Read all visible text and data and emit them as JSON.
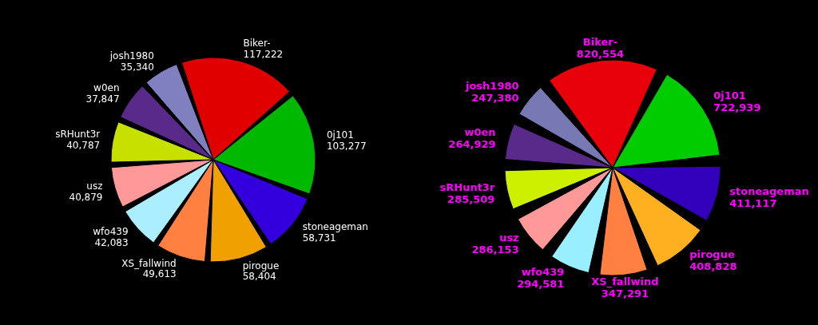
{
  "chart_data": [
    {
      "type": "pie",
      "categories": [
        "Biker-",
        "0j101",
        "stoneageman",
        "pirogue",
        "XS_fallwind",
        "wfo439",
        "usz",
        "sRHunt3r",
        "w0en",
        "josh1980"
      ],
      "values": [
        117222,
        103277,
        58731,
        58404,
        49613,
        42083,
        40879,
        40787,
        37847,
        35340
      ],
      "value_labels": [
        "117,222",
        "103,277",
        "58,731",
        "58,404",
        "49,613",
        "42,083",
        "40,879",
        "40,787",
        "37,847",
        "35,340"
      ],
      "colors": [
        "#e00000",
        "#00b800",
        "#3300dd",
        "#f0a000",
        "#ff8040",
        "#aaeeff",
        "#ff9999",
        "#c8e000",
        "#5a2a8a",
        "#8080c0"
      ]
    },
    {
      "type": "pie",
      "categories": [
        "Biker-",
        "0j101",
        "stoneageman",
        "pirogue",
        "XS_fallwind",
        "wfo439",
        "usz",
        "sRHunt3r",
        "w0en",
        "josh1980"
      ],
      "values": [
        820554,
        722939,
        411117,
        408828,
        347291,
        294581,
        286153,
        285509,
        264929,
        247380
      ],
      "value_labels": [
        "820,554",
        "722,939",
        "411,117",
        "408,828",
        "347,291",
        "294,581",
        "286,153",
        "285,509",
        "264,929",
        "247,380"
      ],
      "colors": [
        "#e8000a",
        "#00cc00",
        "#3300bb",
        "#ffb020",
        "#ff8040",
        "#99eeff",
        "#ff9999",
        "#ccf000",
        "#5a2a8a",
        "#7878b4"
      ]
    }
  ]
}
